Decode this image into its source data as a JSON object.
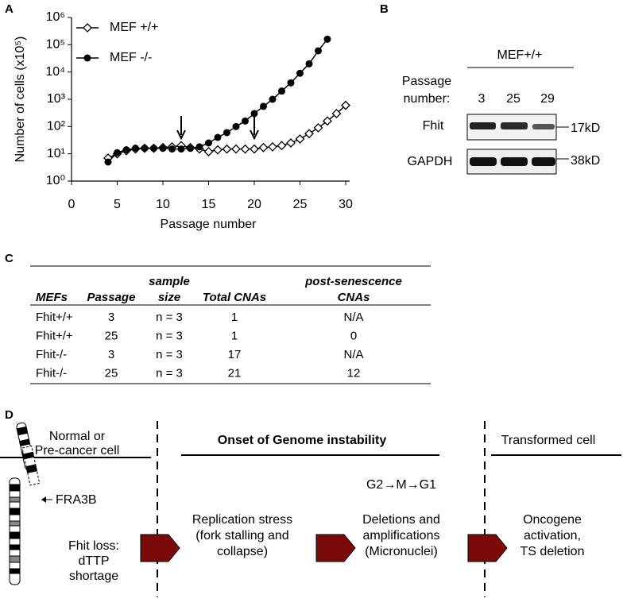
{
  "panels": [
    "A",
    "B",
    "C",
    "D"
  ],
  "chart_data": {
    "type": "line",
    "xlabel": "Passage number",
    "ylabel": "Number of cells (x10⁵)",
    "x": [
      4,
      5,
      6,
      7,
      8,
      9,
      10,
      11,
      12,
      13,
      14,
      15,
      16,
      17,
      18,
      19,
      20,
      21,
      22,
      23,
      24,
      25,
      26,
      27,
      28,
      29,
      30
    ],
    "series": [
      {
        "name": "MEF +/+",
        "color": "#000000",
        "marker": "open-diamond",
        "values": [
          7,
          10,
          13,
          15,
          16,
          16,
          17,
          18,
          20,
          17,
          15,
          12,
          14,
          15,
          15,
          15,
          15,
          17,
          18,
          20,
          25,
          35,
          55,
          90,
          160,
          300,
          600
        ]
      },
      {
        "name": "MEF -/-",
        "color": "#000000",
        "marker": "filled-circle",
        "values": [
          5,
          11,
          14,
          16,
          16,
          16,
          16,
          15,
          15,
          16,
          18,
          25,
          40,
          60,
          100,
          160,
          300,
          550,
          1000,
          2000,
          4000,
          9000,
          20000,
          60000,
          160000,
          null,
          null
        ]
      }
    ],
    "xlim": [
      0,
      30
    ],
    "xticks": [
      0,
      5,
      10,
      15,
      20,
      25,
      30
    ],
    "ylim": [
      1,
      1000000
    ],
    "log_y": true,
    "yticks": [
      {
        "value": 1,
        "label": "10⁰"
      },
      {
        "value": 10,
        "label": "10¹"
      },
      {
        "value": 100,
        "label": "10²"
      },
      {
        "value": 1000,
        "label": "10³"
      },
      {
        "value": 10000,
        "label": "10⁴"
      },
      {
        "value": 100000,
        "label": "10⁵"
      },
      {
        "value": 1000000,
        "label": "10⁶"
      }
    ],
    "arrows_x": [
      12,
      20
    ],
    "legend": "upper left"
  },
  "blot": {
    "title": "MEF+/+",
    "row_header": [
      "Passage",
      "number:"
    ],
    "lanes": [
      3,
      25,
      29
    ],
    "rows": [
      {
        "label": "Fhit",
        "size": "17kD"
      },
      {
        "label": "GAPDH",
        "size": "38kD"
      }
    ]
  },
  "table": {
    "headers": [
      [
        "MEFs"
      ],
      [
        "Passage"
      ],
      [
        "sample",
        "size"
      ],
      [
        "Total CNAs"
      ],
      [
        "post-senescence",
        "CNAs"
      ]
    ],
    "rows": [
      [
        "Fhit+/+",
        3,
        "n = 3",
        1,
        "N/A"
      ],
      [
        "Fhit+/+",
        25,
        "n = 3",
        1,
        0
      ],
      [
        "Fhit-/-",
        3,
        "n = 3",
        17,
        "N/A"
      ],
      [
        "Fhit-/-",
        25,
        "n = 3",
        21,
        12
      ]
    ]
  },
  "diagram": {
    "stages": [
      [
        "Normal or",
        "Pre-cancer cell"
      ],
      [
        "Onset of Genome instability"
      ],
      [
        "Transformed cell"
      ]
    ],
    "locus": "FRA3B",
    "cause": [
      "Fhit loss:",
      "dTTP",
      "shortage"
    ],
    "steps": [
      [
        "Replication stress",
        "(fork stalling and",
        "collapse)"
      ],
      [
        "Deletions and",
        "amplifications",
        "(Micronuclei)"
      ],
      [
        "Oncogene",
        "activation,",
        "TS deletion"
      ]
    ],
    "cycle": "G2→M→G1"
  }
}
